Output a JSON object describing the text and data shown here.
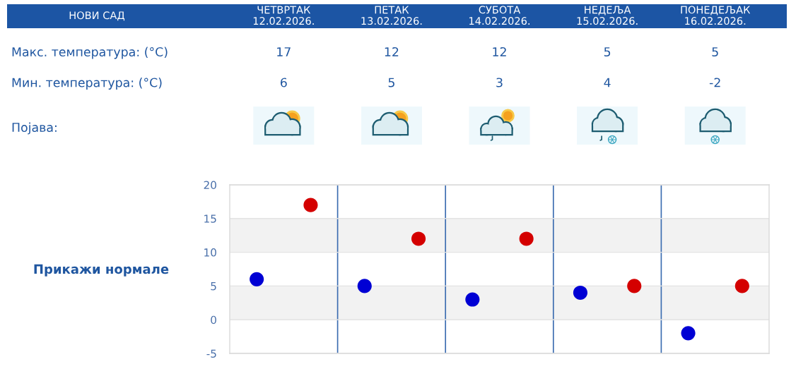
{
  "chart_data": {
    "type": "scatter",
    "title": "НОВИ САД",
    "categories": [
      null,
      null,
      null,
      null,
      null
    ],
    "series": [
      {
        "color": "#d40000",
        "values": [
          17,
          12,
          12,
          5,
          5
        ]
      },
      {
        "color": "#0000d4",
        "values": [
          6,
          5,
          3,
          4,
          -2
        ]
      }
    ],
    "ylim": [
      -5,
      20
    ],
    "yticks": [
      -5,
      0,
      5,
      10,
      15,
      20
    ],
    "grid": true,
    "tick_labels": "y",
    "bands": [
      {
        "axis": "y",
        "from": 10,
        "to": 15,
        "color": "#f2f2f2"
      },
      {
        "axis": "y",
        "from": 0,
        "to": 5,
        "color": "#f2f2f2"
      }
    ],
    "marker": "circle",
    "data_labels": true,
    "legend": false,
    "annotations": [
      "ЧЕТВРТАК\n12.02.2026.",
      "ПЕТАК\n13.02.2026.",
      "СУБОТА\n14.02.2026.",
      "НЕДЕЉА\n15.02.2026.",
      "ПОНЕДЕЉАК\n16.02.2026.",
      "Макс. температура: (°C)",
      "Мин. температура: (°C)",
      "Појава:",
      "Прикажи нормале"
    ]
  }
}
